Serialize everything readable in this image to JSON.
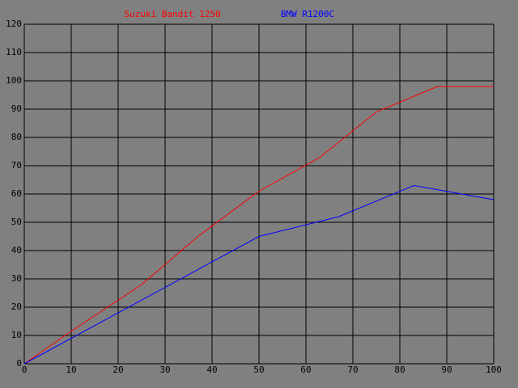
{
  "chart_data": {
    "type": "line",
    "series": [
      {
        "name": "Suzuki Bandit 1250",
        "color": "#ff0000",
        "x": [
          0,
          10,
          25,
          37,
          50,
          63,
          75,
          88,
          100
        ],
        "values": [
          0,
          11.5,
          28,
          45,
          61,
          73,
          89,
          98,
          98
        ]
      },
      {
        "name": "BMW R1200C",
        "color": "#0000ff",
        "x": [
          0,
          50,
          67,
          83,
          100
        ],
        "values": [
          0,
          45,
          52,
          63,
          58
        ]
      }
    ],
    "xlim": [
      0,
      100
    ],
    "xticks": [
      0,
      10,
      20,
      30,
      40,
      50,
      60,
      70,
      80,
      90,
      100
    ],
    "ylim": [
      0,
      120
    ],
    "yticks": [
      0,
      10,
      20,
      30,
      40,
      50,
      60,
      70,
      80,
      90,
      100,
      110,
      120
    ],
    "grid": true,
    "grid_color": "#000000",
    "background": "#808080"
  }
}
